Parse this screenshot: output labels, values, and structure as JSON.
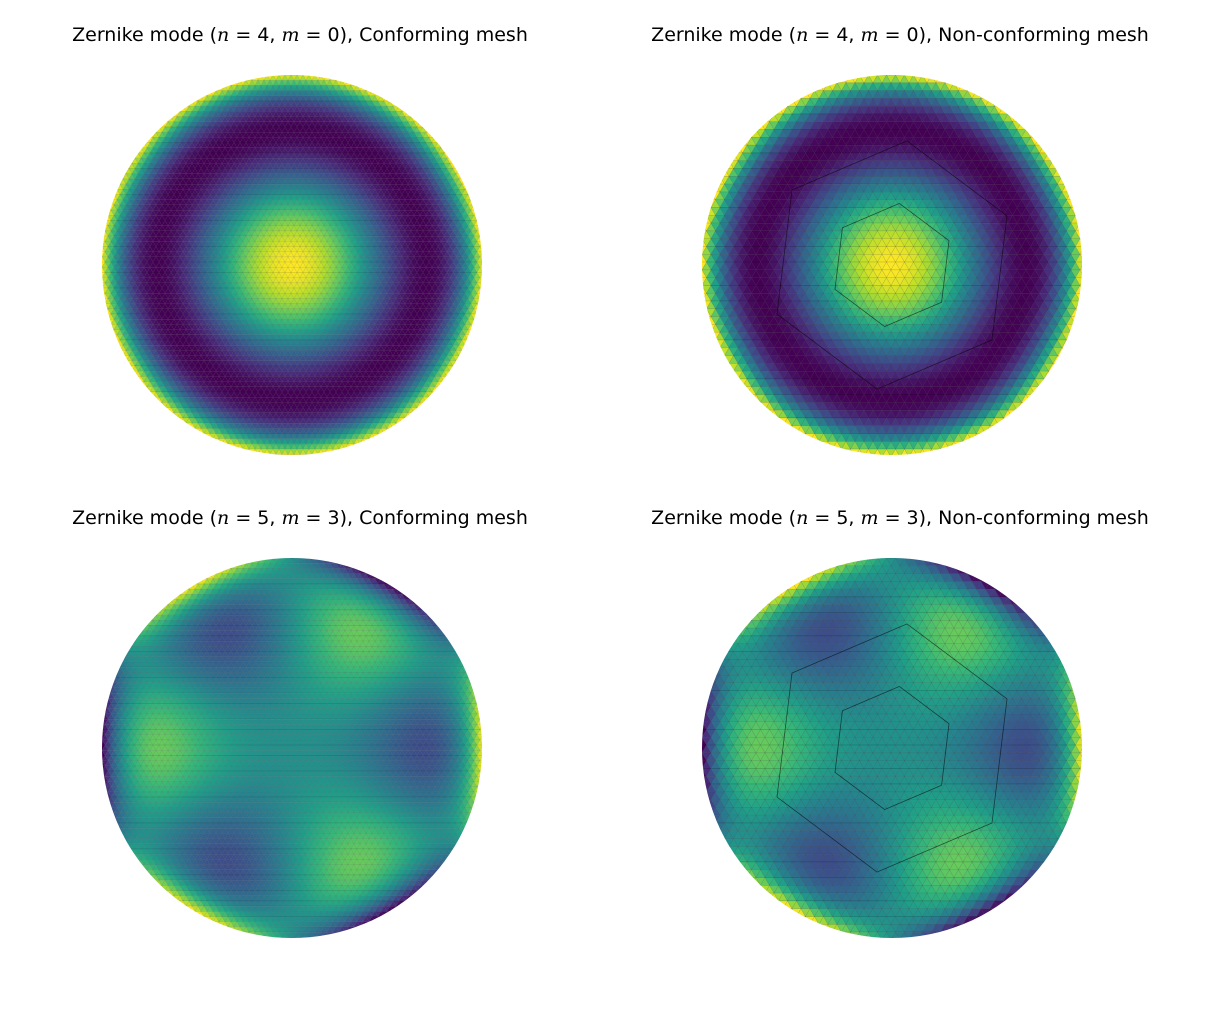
{
  "figure": {
    "panels": [
      {
        "title_prefix": "Zernike mode (",
        "n_sym": "n",
        "eq1": " = 4, ",
        "m_sym": "m",
        "eq2": " = 0",
        "title_suffix": "), Conforming mesh"
      },
      {
        "title_prefix": "Zernike mode (",
        "n_sym": "n",
        "eq1": " = 4, ",
        "m_sym": "m",
        "eq2": " = 0",
        "title_suffix": "), Non-conforming mesh"
      },
      {
        "title_prefix": "Zernike mode (",
        "n_sym": "n",
        "eq1": " = 5, ",
        "m_sym": "m",
        "eq2": " = 3",
        "title_suffix": "), Conforming mesh"
      },
      {
        "title_prefix": "Zernike mode (",
        "n_sym": "n",
        "eq1": " = 5, ",
        "m_sym": "m",
        "eq2": " = 3",
        "title_suffix": "), Non-conforming mesh"
      }
    ]
  },
  "chart_data": [
    {
      "type": "heatmap",
      "title": "Zernike mode (n = 4, m = 0), Conforming mesh",
      "n": 4,
      "m": 0,
      "mesh": "conforming",
      "colormap": "viridis",
      "domain": "unit disk"
    },
    {
      "type": "heatmap",
      "title": "Zernike mode (n = 4, m = 0), Non-conforming mesh",
      "n": 4,
      "m": 0,
      "mesh": "non-conforming",
      "colormap": "viridis",
      "domain": "unit disk"
    },
    {
      "type": "heatmap",
      "title": "Zernike mode (n = 5, m = 3), Conforming mesh",
      "n": 5,
      "m": 3,
      "mesh": "conforming",
      "colormap": "viridis",
      "domain": "unit disk"
    },
    {
      "type": "heatmap",
      "title": "Zernike mode (n = 5, m = 3), Non-conforming mesh",
      "n": 5,
      "m": 3,
      "mesh": "non-conforming",
      "colormap": "viridis",
      "domain": "unit disk"
    }
  ]
}
